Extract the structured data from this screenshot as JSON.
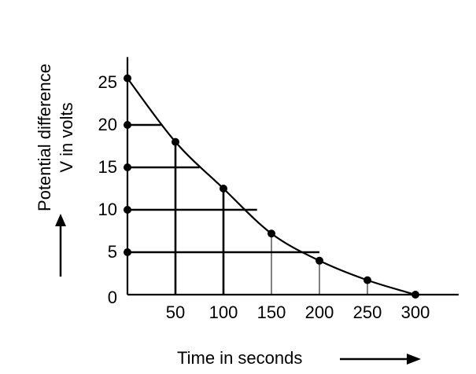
{
  "chart_data": {
    "type": "line",
    "title": "",
    "xlabel": "Time in seconds",
    "ylabel_lines": [
      "Potential difference",
      "V in volts"
    ],
    "x_ticks": [
      50,
      100,
      150,
      200,
      250,
      300
    ],
    "y_ticks": [
      0,
      5,
      10,
      15,
      20,
      25
    ],
    "xlim": [
      0,
      345
    ],
    "ylim": [
      0,
      28
    ],
    "series": [
      {
        "name": "V",
        "points": [
          {
            "x": 0,
            "y": 25.5
          },
          {
            "x": 50,
            "y": 18
          },
          {
            "x": 100,
            "y": 12.5
          },
          {
            "x": 150,
            "y": 7.2
          },
          {
            "x": 200,
            "y": 4
          },
          {
            "x": 250,
            "y": 1.7
          },
          {
            "x": 300,
            "y": 0
          }
        ]
      }
    ],
    "y_axis_markers": [
      20,
      15,
      10,
      5
    ],
    "horizontal_guides": [
      {
        "y": 20,
        "x_end": 35
      },
      {
        "y": 15,
        "x_end": 75
      },
      {
        "y": 10,
        "x_end": 135
      },
      {
        "y": 5,
        "x_end": 200
      }
    ],
    "vertical_guides": [
      {
        "x": 50,
        "y_end": 18,
        "weight": "bold"
      },
      {
        "x": 100,
        "y_end": 12.5,
        "weight": "bold"
      },
      {
        "x": 150,
        "y_end": 7.2,
        "weight": "thin"
      },
      {
        "x": 200,
        "y_end": 4,
        "weight": "thin"
      },
      {
        "x": 250,
        "y_end": 1.7,
        "weight": "thin"
      }
    ]
  }
}
